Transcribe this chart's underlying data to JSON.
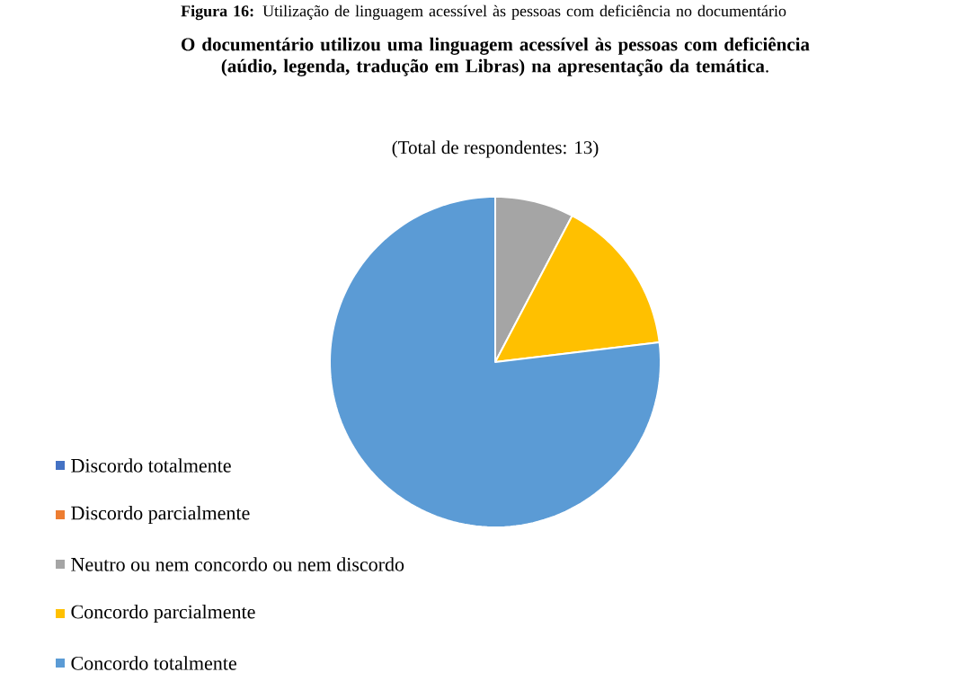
{
  "chart_data": {
    "type": "pie",
    "title": "**O documentário utilizou uma linguagem acessível às pessoas com deficiência (aúdio, legenda, tradução em Libras) na apresentação da temática**.",
    "subtitle": "(Total de respondentes: 13)",
    "annotations": [
      "**Figura 16:** Utilização de linguagem acessível às pessoas com deficiência no documentário"
    ],
    "categories": [
      "Discordo totalmente",
      "Discordo parcialmente",
      "Neutro ou nem concordo ou nem discordo",
      "Concordo parcialmente",
      "Concordo totalmente"
    ],
    "values": [
      0,
      0,
      7.7,
      15.4,
      76.9
    ],
    "colors": [
      "#4472c4",
      "#ed7d31",
      "#a5a5a5",
      "#ffc000",
      "#5b9bd5"
    ],
    "legend": "bottom left"
  }
}
